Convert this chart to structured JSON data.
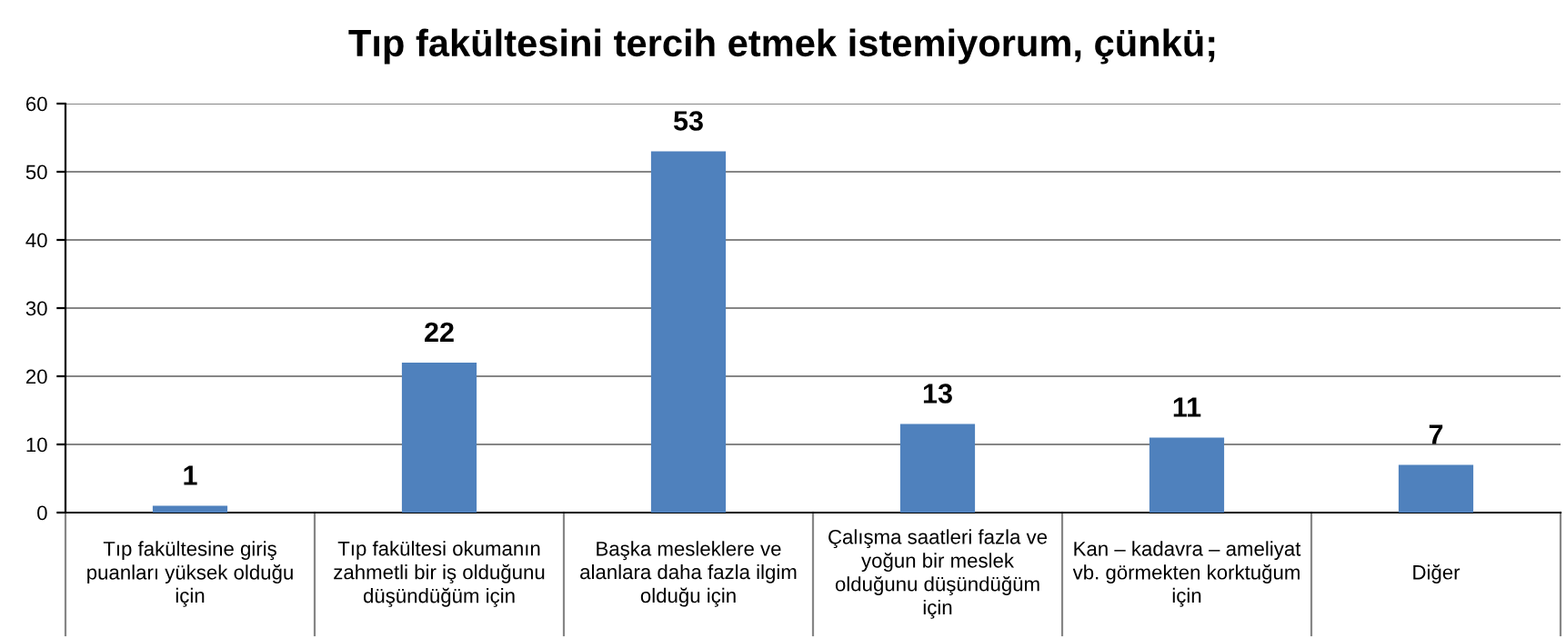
{
  "chart_data": {
    "type": "bar",
    "title": "Tıp fakültesini tercih etmek istemiyorum, çünkü;",
    "categories": [
      "Tıp fakültesine giriş puanları yüksek olduğu için",
      "Tıp fakültesi okumanın zahmetli bir iş olduğunu düşündüğüm için",
      "Başka mesleklere ve alanlara daha fazla ilgim olduğu için",
      "Çalışma saatleri fazla ve yoğun bir meslek olduğunu düşündüğüm için",
      "Kan – kadavra – ameliyat vb. görmekten korktuğum için",
      "Diğer"
    ],
    "values": [
      1,
      22,
      53,
      13,
      11,
      7
    ],
    "color": "#4f81bd",
    "ylim": [
      0,
      60
    ],
    "yticks": [
      0,
      10,
      20,
      30,
      40,
      50,
      60
    ],
    "grid": "y",
    "data_labels": true
  }
}
